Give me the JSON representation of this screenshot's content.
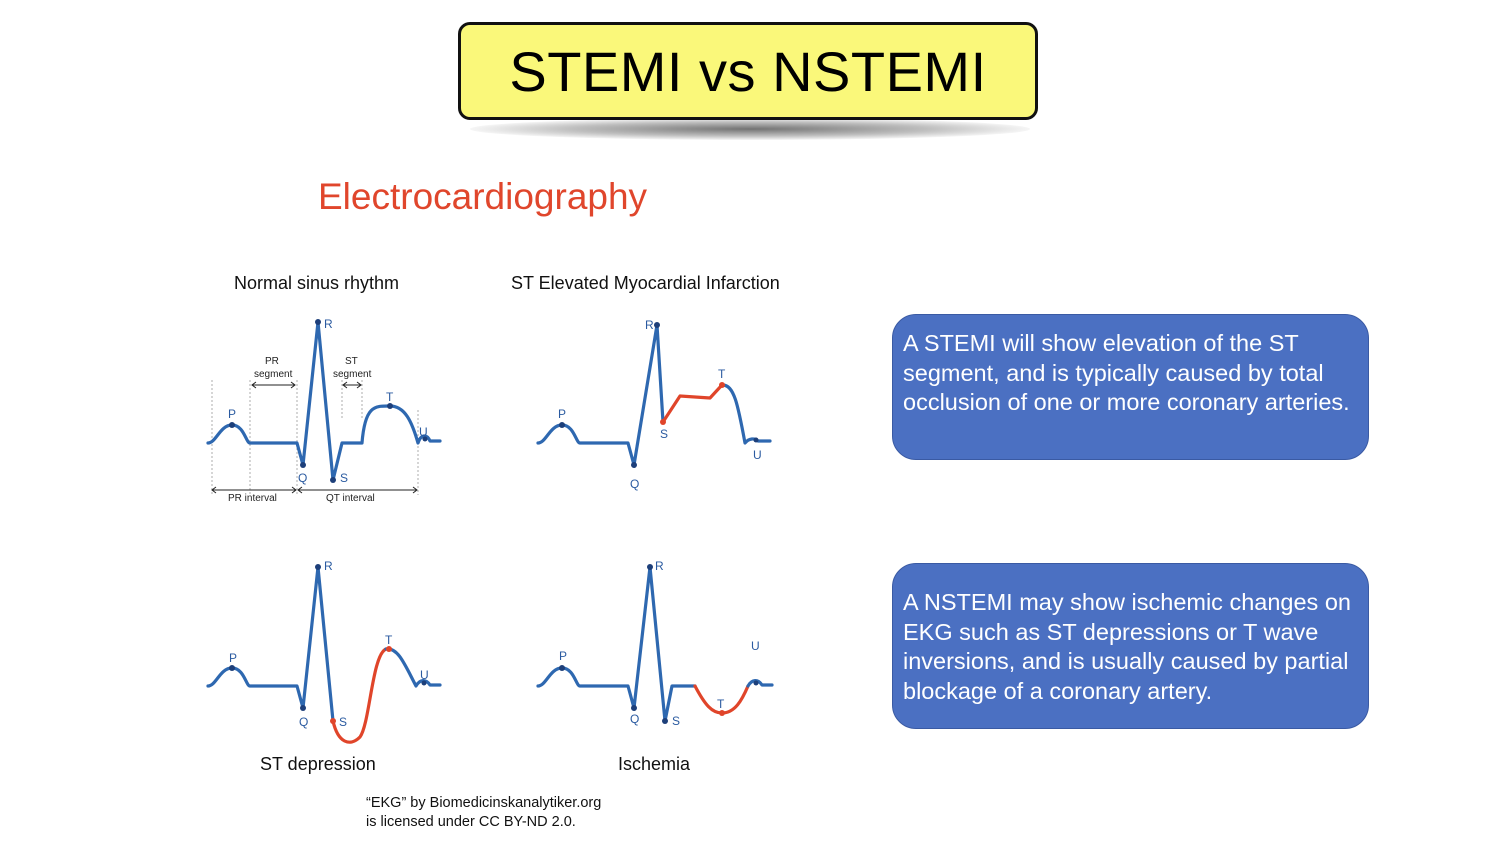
{
  "title": "STEMI vs NSTEMI",
  "subtitle": "Electrocardiography",
  "panels": {
    "normal": {
      "label": "Normal sinus rhythm",
      "points": {
        "p": "P",
        "q": "Q",
        "r": "R",
        "s": "S",
        "t": "T",
        "u": "U"
      },
      "annotations": {
        "pr_segment_1": "PR",
        "pr_segment_2": "segment",
        "st_segment_1": "ST",
        "st_segment_2": "segment",
        "pr_interval": "PR interval",
        "qt_interval": "QT interval"
      }
    },
    "stemi": {
      "label": "ST Elevated Myocardial Infarction",
      "points": {
        "p": "P",
        "q": "Q",
        "r": "R",
        "s": "S",
        "t": "T",
        "u": "U"
      }
    },
    "st_depression": {
      "label": "ST depression",
      "points": {
        "p": "P",
        "q": "Q",
        "r": "R",
        "s": "S",
        "t": "T",
        "u": "U"
      }
    },
    "ischemia": {
      "label": "Ischemia",
      "points": {
        "p": "P",
        "q": "Q",
        "r": "R",
        "s": "S",
        "t": "T",
        "u": "U"
      }
    }
  },
  "callouts": {
    "stemi": "A STEMI will show elevation of the ST segment, and is typically caused by total occlusion of one or more coronary arteries.",
    "nstemi": "A NSTEMI may show ischemic changes on EKG such as ST depressions or T wave inversions, and is usually caused by partial blockage of a coronary artery."
  },
  "credit": {
    "line1": "“EKG” by Biomedicinskanalytiker.org",
    "line2": "is licensed under CC BY-ND 2.0."
  },
  "colors": {
    "title_bg": "#faf87a",
    "subtitle": "#e0462c",
    "wave": "#2e68b0",
    "highlight": "#e0452a",
    "callout_bg": "#4b70c2"
  }
}
